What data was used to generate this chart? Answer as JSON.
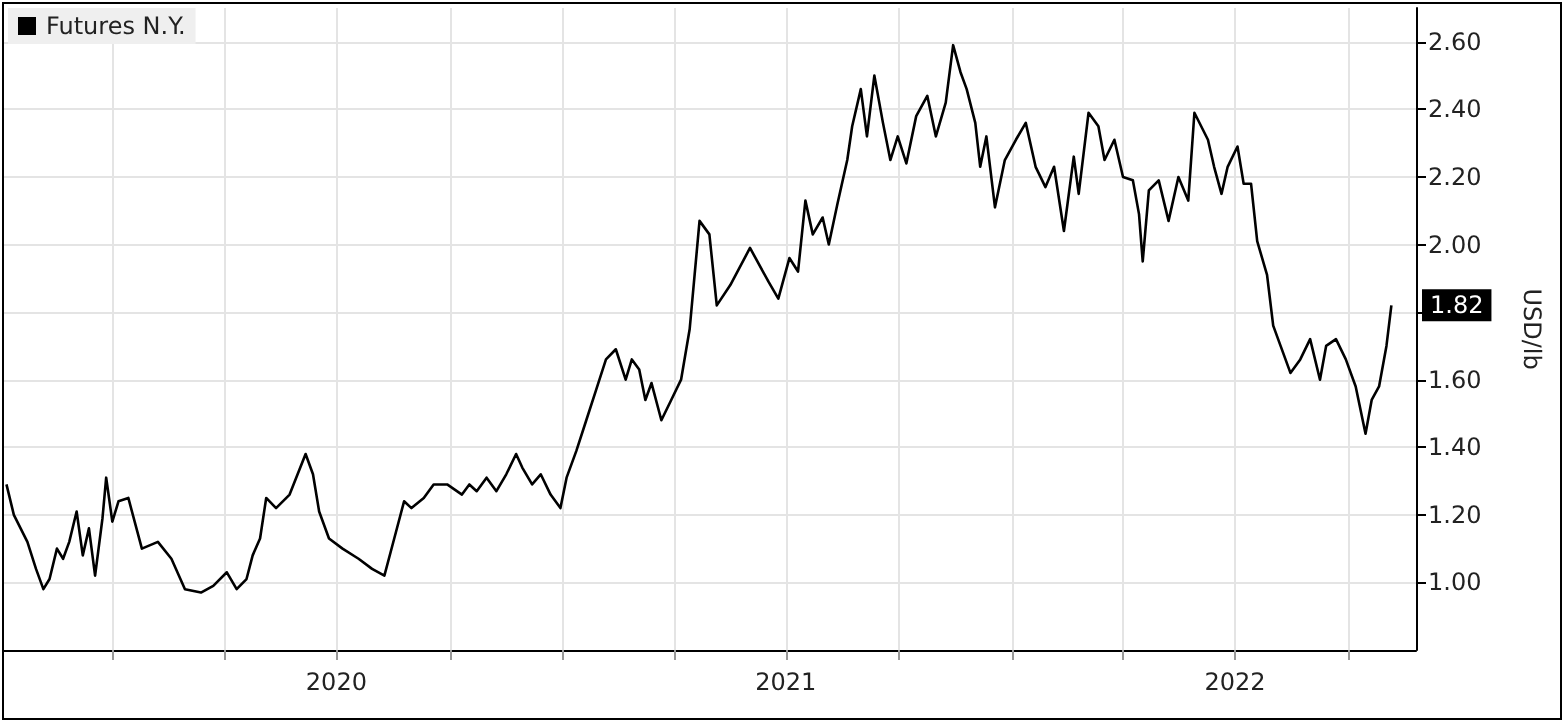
{
  "chart_data": {
    "type": "line",
    "ylabel": "USD/lb",
    "legend": "top left",
    "grid": true,
    "marker": "none",
    "line_style": "solid",
    "xlim": [
      "2019-10-05",
      "2022-11-25"
    ],
    "ylim": [
      0.8,
      2.7
    ],
    "yticks": [
      {
        "value": 1,
        "label": "1.00"
      },
      {
        "value": 1.2,
        "label": "1.20"
      },
      {
        "value": 1.4,
        "label": "1.40"
      },
      {
        "value": 1.6,
        "label": "1.60"
      },
      {
        "value": 1.8,
        "label": null
      },
      {
        "value": 2,
        "label": "2.00"
      },
      {
        "value": 2.2,
        "label": "2.20"
      },
      {
        "value": 2.4,
        "label": "2.40"
      },
      {
        "value": 2.6,
        "label": "2.60"
      }
    ],
    "xticks": [
      {
        "value": "2020-01-01",
        "label": null
      },
      {
        "value": "2020-04-01",
        "label": null
      },
      {
        "value": "2020-07-01",
        "label": "2020"
      },
      {
        "value": "2020-10-01",
        "label": null
      },
      {
        "value": "2021-01-01",
        "label": null
      },
      {
        "value": "2021-04-01",
        "label": null
      },
      {
        "value": "2021-07-01",
        "label": "2021"
      },
      {
        "value": "2021-10-01",
        "label": null
      },
      {
        "value": "2022-01-01",
        "label": null
      },
      {
        "value": "2022-04-01",
        "label": null
      },
      {
        "value": "2022-07-01",
        "label": "2022"
      },
      {
        "value": "2022-10-01",
        "label": null
      }
    ],
    "annotations": [
      {
        "text": "1.82",
        "y": 1.82
      }
    ],
    "series": [
      {
        "name": "Futures N.Y.",
        "color": "#000000",
        "x": [
          "2019-10-07",
          "2019-10-13",
          "2019-10-24",
          "2019-10-31",
          "2019-11-06",
          "2019-11-11",
          "2019-11-17",
          "2019-11-22",
          "2019-11-27",
          "2019-12-03",
          "2019-12-08",
          "2019-12-13",
          "2019-12-18",
          "2019-12-24",
          "2019-12-27",
          "2020-01-01",
          "2020-01-06",
          "2020-01-14",
          "2020-01-25",
          "2020-02-07",
          "2020-02-18",
          "2020-02-29",
          "2020-03-13",
          "2020-03-23",
          "2020-04-03",
          "2020-04-11",
          "2020-04-19",
          "2020-04-24",
          "2020-04-30",
          "2020-05-05",
          "2020-05-13",
          "2020-05-24",
          "2020-06-06",
          "2020-06-12",
          "2020-06-17",
          "2020-06-25",
          "2020-07-06",
          "2020-07-19",
          "2020-07-30",
          "2020-08-09",
          "2020-08-17",
          "2020-08-25",
          "2020-08-31",
          "2020-09-10",
          "2020-09-18",
          "2020-09-29",
          "2020-10-11",
          "2020-10-17",
          "2020-10-23",
          "2020-10-31",
          "2020-11-08",
          "2020-11-16",
          "2020-11-24",
          "2020-11-29",
          "2020-12-07",
          "2020-12-14",
          "2020-12-22",
          "2020-12-30",
          "2021-01-04",
          "2021-01-12",
          "2021-01-20",
          "2021-01-28",
          "2021-02-05",
          "2021-02-13",
          "2021-02-21",
          "2021-02-26",
          "2021-03-04",
          "2021-03-09",
          "2021-03-14",
          "2021-03-22",
          "2021-03-30",
          "2021-04-07",
          "2021-04-14",
          "2021-04-18",
          "2021-04-22",
          "2021-04-30",
          "2021-05-06",
          "2021-05-17",
          "2021-06-02",
          "2021-06-17",
          "2021-06-25",
          "2021-07-04",
          "2021-07-11",
          "2021-07-17",
          "2021-07-23",
          "2021-07-31",
          "2021-08-05",
          "2021-08-12",
          "2021-08-20",
          "2021-08-24",
          "2021-08-31",
          "2021-09-05",
          "2021-09-11",
          "2021-09-18",
          "2021-09-24",
          "2021-09-30",
          "2021-10-07",
          "2021-10-15",
          "2021-10-24",
          "2021-10-31",
          "2021-11-08",
          "2021-11-14",
          "2021-11-20",
          "2021-11-25",
          "2021-12-02",
          "2021-12-06",
          "2021-12-11",
          "2021-12-18",
          "2021-12-26",
          "2022-01-04",
          "2022-01-12",
          "2022-01-20",
          "2022-01-28",
          "2022-02-04",
          "2022-02-12",
          "2022-02-20",
          "2022-02-24",
          "2022-03-04",
          "2022-03-12",
          "2022-03-17",
          "2022-03-25",
          "2022-04-01",
          "2022-04-09",
          "2022-04-14",
          "2022-04-17",
          "2022-04-22",
          "2022-04-30",
          "2022-05-08",
          "2022-05-16",
          "2022-05-24",
          "2022-05-29",
          "2022-06-09",
          "2022-06-14",
          "2022-06-20",
          "2022-06-25",
          "2022-07-03",
          "2022-07-08",
          "2022-07-14",
          "2022-07-19",
          "2022-07-27",
          "2022-08-01",
          "2022-08-07",
          "2022-08-15",
          "2022-08-23",
          "2022-08-31",
          "2022-09-08",
          "2022-09-13",
          "2022-09-21",
          "2022-09-29",
          "2022-10-07",
          "2022-10-15",
          "2022-10-20",
          "2022-10-26",
          "2022-11-01",
          "2022-11-05"
        ],
        "values": [
          1.29,
          1.2,
          1.12,
          1.04,
          0.98,
          1.01,
          1.1,
          1.07,
          1.12,
          1.21,
          1.08,
          1.16,
          1.02,
          1.19,
          1.31,
          1.18,
          1.24,
          1.25,
          1.1,
          1.12,
          1.07,
          0.98,
          0.97,
          0.99,
          1.03,
          0.98,
          1.01,
          1.08,
          1.13,
          1.25,
          1.22,
          1.26,
          1.38,
          1.32,
          1.21,
          1.13,
          1.1,
          1.07,
          1.04,
          1.02,
          1.13,
          1.24,
          1.22,
          1.25,
          1.29,
          1.29,
          1.26,
          1.29,
          1.27,
          1.31,
          1.27,
          1.32,
          1.38,
          1.34,
          1.29,
          1.32,
          1.26,
          1.22,
          1.31,
          1.39,
          1.48,
          1.57,
          1.66,
          1.69,
          1.6,
          1.66,
          1.63,
          1.54,
          1.59,
          1.48,
          1.54,
          1.6,
          1.75,
          1.91,
          2.07,
          2.03,
          1.82,
          1.88,
          1.99,
          1.89,
          1.84,
          1.96,
          1.92,
          2.13,
          2.03,
          2.08,
          2.0,
          2.12,
          2.25,
          2.35,
          2.46,
          2.32,
          2.5,
          2.36,
          2.25,
          2.32,
          2.24,
          2.38,
          2.44,
          2.32,
          2.42,
          2.59,
          2.51,
          2.46,
          2.36,
          2.23,
          2.32,
          2.11,
          2.25,
          2.31,
          2.36,
          2.23,
          2.17,
          2.23,
          2.04,
          2.26,
          2.15,
          2.39,
          2.35,
          2.25,
          2.31,
          2.2,
          2.19,
          2.09,
          1.95,
          2.16,
          2.19,
          2.07,
          2.2,
          2.13,
          2.39,
          2.31,
          2.23,
          2.15,
          2.23,
          2.29,
          2.18,
          2.18,
          2.01,
          1.91,
          1.76,
          1.7,
          1.62,
          1.66,
          1.72,
          1.6,
          1.7,
          1.72,
          1.66,
          1.58,
          1.44,
          1.54,
          1.58,
          1.7,
          1.82
        ]
      }
    ]
  }
}
